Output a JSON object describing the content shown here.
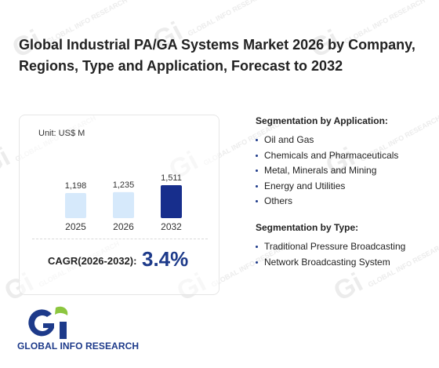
{
  "header": {
    "title": "Global Industrial PA/GA Systems Market 2026 by Company, Regions, Type and Application, Forecast to 2032"
  },
  "chart_data": {
    "type": "bar",
    "unit_label": "Unit: US$ M",
    "categories": [
      "2025",
      "2026",
      "2032"
    ],
    "values": [
      1198,
      1235,
      1511
    ],
    "value_labels": [
      "1,198",
      "1,235",
      "1,511"
    ],
    "bar_colors": [
      "#d6e9fb",
      "#d6e9fb",
      "#172e8c"
    ],
    "grid": false,
    "legend": "none"
  },
  "cagr": {
    "label": "CAGR(2026-2032):",
    "value": "3.4%"
  },
  "segmentation_application": {
    "title": "Segmentation by Application:",
    "items": [
      "Oil and Gas",
      "Chemicals and Pharmaceuticals",
      "Metal, Minerals and Mining",
      "Energy and Utilities",
      "Others"
    ]
  },
  "segmentation_type": {
    "title": "Segmentation by Type:",
    "items": [
      "Traditional Pressure Broadcasting",
      "Network Broadcasting System"
    ]
  },
  "logo": {
    "text": "GLOBAL INFO RESEARCH",
    "colors": {
      "blue": "#1d3a8a",
      "green": "#8cc63f"
    }
  },
  "watermark": {
    "text": "GLOBAL INFO RESEARCH"
  }
}
